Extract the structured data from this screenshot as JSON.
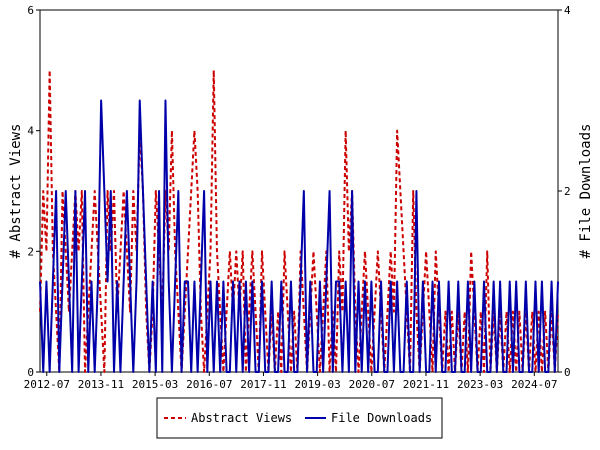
{
  "chart_data": {
    "type": "line",
    "title": "",
    "grid": false,
    "legend_placement": "bottom-center",
    "colors": {
      "views": "#cc0000",
      "downloads": "#0000aa"
    },
    "x_ticks": [
      "2012-07",
      "2013-11",
      "2015-03",
      "2016-07",
      "2017-11",
      "2019-03",
      "2020-07",
      "2021-11",
      "2023-03",
      "2024-07"
    ],
    "x_start": "2012-05",
    "x_end": "2025-02",
    "y_left": {
      "label": "# Abstract Views",
      "range": [
        0,
        6
      ],
      "ticks": [
        "0",
        "2",
        "4",
        "6"
      ]
    },
    "y_right": {
      "label": "# File Downloads",
      "range": [
        0,
        4
      ],
      "ticks": [
        "0",
        "2",
        "4"
      ]
    },
    "series": [
      {
        "name": "Abstract Views",
        "axis": "left",
        "style": "dashed",
        "values": [
          1,
          3,
          2,
          5,
          2,
          1,
          0,
          3,
          2,
          1,
          2,
          3,
          2,
          3,
          0,
          1,
          2,
          3,
          2,
          1,
          0,
          3,
          2,
          3,
          1,
          2,
          3,
          2,
          1,
          3,
          2,
          4,
          3,
          1,
          0,
          1,
          3,
          2,
          1,
          3,
          2,
          4,
          2,
          1,
          0,
          1,
          2,
          3,
          4,
          3,
          1,
          0,
          1,
          2,
          5,
          2,
          1,
          0,
          1,
          2,
          1,
          2,
          1,
          2,
          0,
          1,
          2,
          1,
          0,
          2,
          1,
          0,
          1,
          0,
          1,
          0,
          2,
          1,
          0,
          1,
          0,
          2,
          1,
          0,
          1,
          2,
          1,
          0,
          1,
          2,
          0,
          1,
          0,
          2,
          1,
          4,
          2,
          3,
          1,
          0,
          1,
          2,
          1,
          0,
          1,
          2,
          1,
          0,
          1,
          2,
          1,
          4,
          3,
          2,
          1,
          0,
          3,
          1,
          0,
          1,
          2,
          1,
          0,
          2,
          1,
          0,
          1,
          0,
          1,
          0,
          1,
          0,
          1,
          0,
          2,
          1,
          0,
          1,
          0,
          2,
          0,
          1,
          0,
          1,
          0,
          1,
          0,
          1,
          0,
          1,
          0,
          1,
          0,
          1,
          0,
          1,
          0,
          1,
          0,
          1,
          0,
          1
        ]
      },
      {
        "name": "File Downloads",
        "axis": "right",
        "style": "solid",
        "values": [
          1,
          0,
          1,
          0,
          1,
          2,
          0,
          1,
          2,
          1,
          0,
          2,
          0,
          1,
          2,
          0,
          1,
          0,
          1,
          3,
          2,
          1,
          2,
          0,
          1,
          0,
          1,
          2,
          1,
          0,
          1,
          3,
          2,
          1,
          0,
          1,
          0,
          2,
          0,
          3,
          1,
          0,
          1,
          2,
          0,
          1,
          1,
          0,
          1,
          0,
          1,
          2,
          0,
          1,
          0,
          1,
          0,
          1,
          0,
          0,
          1,
          0,
          1,
          0,
          1,
          0,
          1,
          0,
          0,
          1,
          0,
          0,
          1,
          0,
          0,
          1,
          0,
          0,
          1,
          0,
          0,
          1,
          2,
          0,
          1,
          0,
          0,
          1,
          0,
          1,
          2,
          0,
          1,
          1,
          0,
          1,
          0,
          2,
          0,
          1,
          0,
          1,
          0,
          1,
          0,
          0,
          1,
          0,
          0,
          1,
          0,
          1,
          0,
          0,
          1,
          0,
          0,
          2,
          0,
          1,
          0,
          0,
          1,
          0,
          1,
          0,
          0,
          1,
          0,
          0,
          1,
          0,
          0,
          1,
          0,
          1,
          0,
          0,
          1,
          0,
          0,
          1,
          0,
          1,
          0,
          0,
          1,
          0,
          1,
          0,
          0,
          1,
          0,
          0,
          1,
          0,
          1,
          0,
          0,
          1,
          0,
          1
        ]
      }
    ]
  }
}
